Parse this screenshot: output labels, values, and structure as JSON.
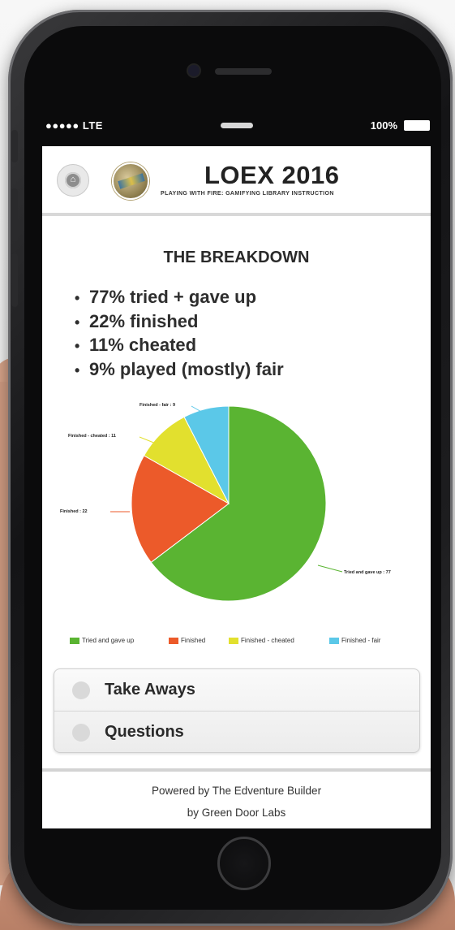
{
  "status_bar": {
    "carrier": "●●●●● LTE",
    "battery": "100%"
  },
  "header": {
    "home_icon": "home-icon",
    "title": "LOEX 2016",
    "subtitle": "PLAYING WITH FIRE: GAMIFYING LIBRARY INSTRUCTION"
  },
  "content": {
    "section_title": "THE BREAKDOWN",
    "bullets": [
      "77% tried + gave up",
      "22% finished",
      "11% cheated",
      "9% played (mostly) fair"
    ]
  },
  "chart_data": {
    "type": "pie",
    "series": [
      {
        "name": "Tried and gave up",
        "value": 77,
        "label": "Tried and gave up : 77",
        "color": "#5ab432"
      },
      {
        "name": "Finished",
        "value": 22,
        "label": "Finished : 22",
        "color": "#ec5a2a"
      },
      {
        "name": "Finished - cheated",
        "value": 11,
        "label": "Finished - cheated : 11",
        "color": "#e2e02e"
      },
      {
        "name": "Finished - fair",
        "value": 9,
        "label": "Finished - fair : 9",
        "color": "#5bc8e8"
      }
    ],
    "legend": {
      "placement": "bottom",
      "entries": [
        "Tried and gave up",
        "Finished",
        "Finished - cheated",
        "Finished - fair"
      ]
    }
  },
  "collapsibles": [
    {
      "label": "Take Aways"
    },
    {
      "label": "Questions"
    }
  ],
  "footer": {
    "line1": "Powered by The Edventure Builder",
    "line2": "by Green Door Labs"
  }
}
